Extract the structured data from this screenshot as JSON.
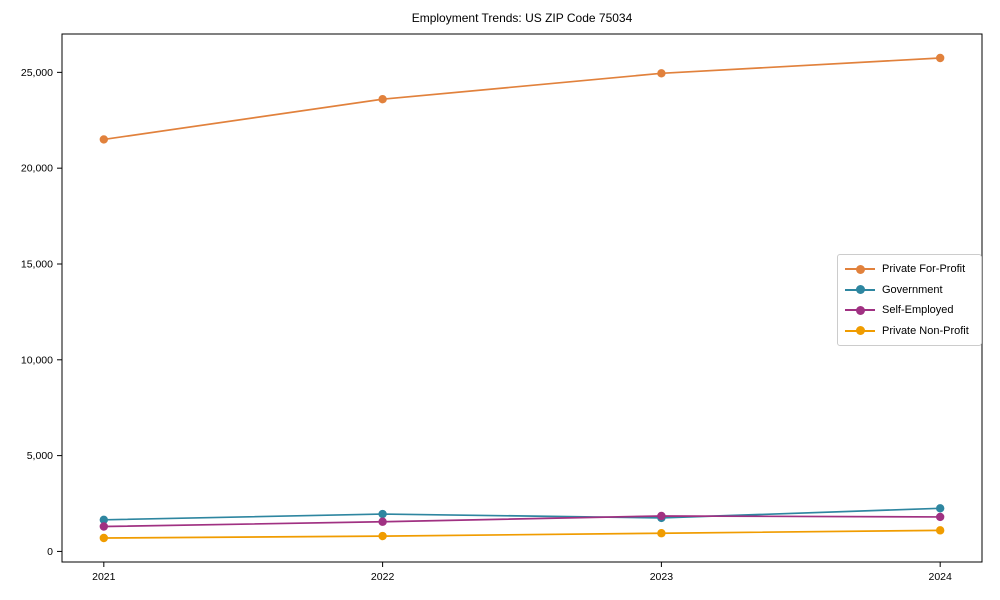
{
  "chart_data": {
    "type": "line",
    "title": "Employment Trends: US ZIP Code 75034",
    "x": [
      2021,
      2022,
      2023,
      2024
    ],
    "x_labels": [
      "2021",
      "2022",
      "2023",
      "2024"
    ],
    "series": [
      {
        "name": "Private For-Profit",
        "color": "#E1813C",
        "values": [
          21500,
          23600,
          24950,
          25750
        ]
      },
      {
        "name": "Government",
        "color": "#2E86A0",
        "values": [
          1650,
          1950,
          1750,
          2250
        ]
      },
      {
        "name": "Self-Employed",
        "color": "#A03182",
        "values": [
          1300,
          1550,
          1850,
          1800
        ]
      },
      {
        "name": "Private Non-Profit",
        "color": "#F09C00",
        "values": [
          700,
          800,
          950,
          1100
        ]
      }
    ],
    "yticks": [
      0,
      5000,
      10000,
      15000,
      20000,
      25000
    ],
    "ytick_labels": [
      "0",
      "5,000",
      "10,000",
      "15,000",
      "20,000",
      "25,000"
    ],
    "xlim": [
      2020.85,
      2024.15
    ],
    "ylim": [
      -552,
      27002
    ],
    "grid": false,
    "legend_position": "center right",
    "background": "#ffffff",
    "axis_color": "#000000"
  }
}
